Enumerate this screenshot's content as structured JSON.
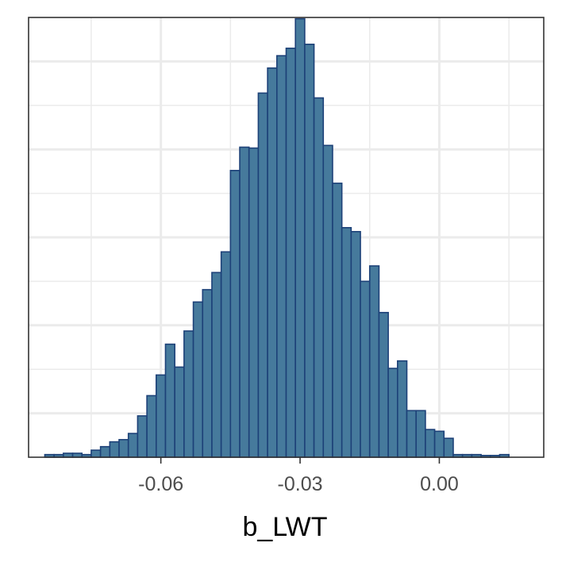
{
  "chart_data": {
    "type": "histogram",
    "xlabel": "b_LWT",
    "ylabel": "",
    "title": "",
    "x_ticks": [
      {
        "value": -0.06,
        "label": "-0.06"
      },
      {
        "value": -0.03,
        "label": "-0.03"
      },
      {
        "value": 0.0,
        "label": "0.00"
      }
    ],
    "xlim": [
      -0.0885,
      0.0225
    ],
    "ylim": [
      0,
      1.0
    ],
    "y_axis_labels_shown": false,
    "grid": true,
    "bin_width": 0.002,
    "bins_start": [
      -0.085,
      -0.083,
      -0.081,
      -0.079,
      -0.077,
      -0.075,
      -0.073,
      -0.071,
      -0.069,
      -0.067,
      -0.065,
      -0.063,
      -0.061,
      -0.059,
      -0.057,
      -0.055,
      -0.053,
      -0.051,
      -0.049,
      -0.047,
      -0.045,
      -0.043,
      -0.041,
      -0.039,
      -0.037,
      -0.035,
      -0.033,
      -0.031,
      -0.029,
      -0.027,
      -0.025,
      -0.023,
      -0.021,
      -0.019,
      -0.017,
      -0.015,
      -0.013,
      -0.011,
      -0.009,
      -0.007,
      -0.005,
      -0.003,
      -0.001,
      0.001,
      0.003,
      0.005,
      0.007,
      0.009,
      0.011,
      0.013,
      0.015
    ],
    "values": [
      0.006,
      0.006,
      0.009,
      0.009,
      0.006,
      0.016,
      0.024,
      0.035,
      0.04,
      0.054,
      0.094,
      0.14,
      0.187,
      0.257,
      0.205,
      0.287,
      0.353,
      0.381,
      0.42,
      0.467,
      0.652,
      0.705,
      0.703,
      0.828,
      0.885,
      0.913,
      0.93,
      0.997,
      0.939,
      0.817,
      0.709,
      0.623,
      0.522,
      0.513,
      0.4,
      0.435,
      0.329,
      0.202,
      0.219,
      0.106,
      0.106,
      0.063,
      0.059,
      0.043,
      0.006,
      0.006,
      0.006,
      0.004,
      0.004,
      0.006,
      0.0
    ],
    "colors": {
      "bar_fill": "#467a9c",
      "bar_outline": "#1d4178",
      "grid": "#ebebeb",
      "panel_border": "#333333",
      "tick_text": "#4d4d4d"
    }
  }
}
